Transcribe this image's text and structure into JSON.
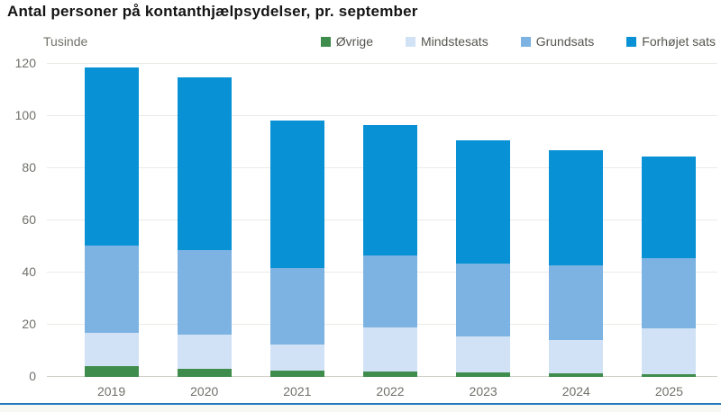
{
  "page": {
    "title": "Antal personer på kontanthjælpsydelser, pr. september",
    "unit_label": "Tusinde"
  },
  "colors": {
    "title_text": "#141414",
    "axis_text": "#70706a",
    "legend_text": "#54544e",
    "gridline": "#eaeae5",
    "zero_line": "#cfcfc7",
    "footer_line": "#2579bd"
  },
  "chart_data": {
    "type": "bar",
    "stacked": true,
    "title": "Antal personer på kontanthjælpsydelser, pr. september",
    "ylabel": "Tusinde",
    "xlabel": "",
    "categories": [
      "2019",
      "2020",
      "2021",
      "2022",
      "2023",
      "2024",
      "2025"
    ],
    "series": [
      {
        "name": "Øvrige",
        "color": "#3f8d4c",
        "values": [
          4.0,
          3.2,
          2.5,
          2.2,
          1.8,
          1.3,
          0.9
        ]
      },
      {
        "name": "Mindstesats",
        "color": "#d2e2f6",
        "values": [
          13.0,
          13.1,
          9.9,
          16.8,
          13.6,
          12.9,
          17.7
        ]
      },
      {
        "name": "Grundsats",
        "color": "#7cb3e2",
        "values": [
          33.5,
          32.5,
          29.4,
          27.5,
          28.1,
          28.5,
          26.8
        ]
      },
      {
        "name": "Forhøjet sats",
        "color": "#0892d5",
        "values": [
          68.3,
          66.0,
          56.4,
          50.0,
          47.3,
          44.1,
          39.1
        ]
      }
    ],
    "totals": [
      118.8,
      114.8,
      98.2,
      96.5,
      90.8,
      86.8,
      84.5
    ],
    "ylim": [
      0,
      120
    ],
    "yticks": [
      0,
      20,
      40,
      60,
      80,
      100,
      120
    ],
    "grid": true,
    "legend_position": "top-right",
    "note": "pr. september"
  }
}
